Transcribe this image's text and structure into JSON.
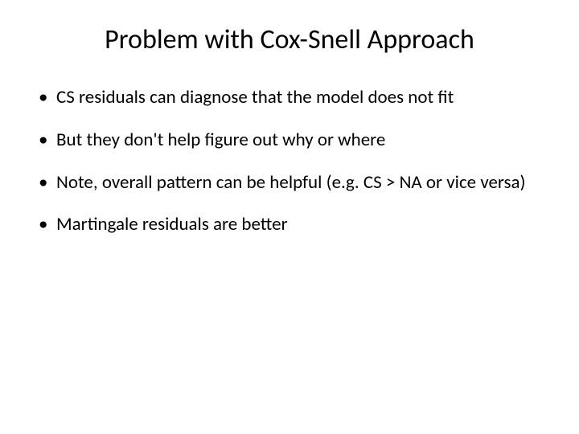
{
  "slide": {
    "title": "Problem with Cox-Snell Approach",
    "bullets": [
      "CS residuals can diagnose that the model does not fit",
      "But they don't help figure out why or where",
      "Note, overall pattern can be helpful (e.g. CS > NA or vice versa)",
      "Martingale residuals are better"
    ],
    "title_fontsize": 34,
    "body_fontsize": 23,
    "text_color": "#000000",
    "background_color": "#ffffff"
  }
}
